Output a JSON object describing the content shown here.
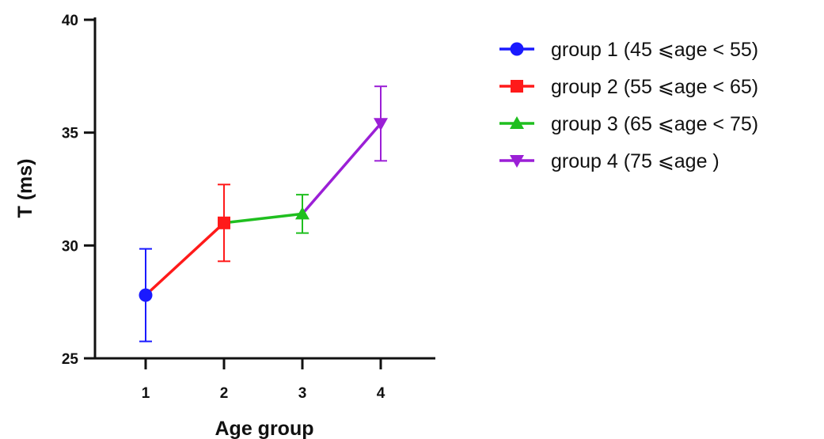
{
  "chart_data": {
    "type": "line",
    "title": "",
    "xlabel": "Age group",
    "ylabel": "T (ms)",
    "categories": [
      "1",
      "2",
      "3",
      "4"
    ],
    "ylim": [
      25,
      40
    ],
    "yticks": [
      "25",
      "30",
      "35",
      "40"
    ],
    "grid": false,
    "legend_position": "right",
    "series": [
      {
        "name": "group 1 (45 ⩽age < 55)",
        "x": 1,
        "y": 27.8,
        "error": 2.05,
        "color": "#1a1aff",
        "marker": "circle"
      },
      {
        "name": "group 2 (55 ⩽age < 65)",
        "x": 2,
        "y": 31.0,
        "error": 1.7,
        "color": "#ff1a1a",
        "marker": "square"
      },
      {
        "name": "group 3 (65 ⩽age < 75)",
        "x": 3,
        "y": 31.4,
        "error": 0.85,
        "color": "#1fbf1f",
        "marker": "triangle-up"
      },
      {
        "name": "group 4 (75 ⩽age )",
        "x": 4,
        "y": 35.4,
        "error": 1.65,
        "color": "#9b1fd6",
        "marker": "triangle-down"
      }
    ]
  }
}
